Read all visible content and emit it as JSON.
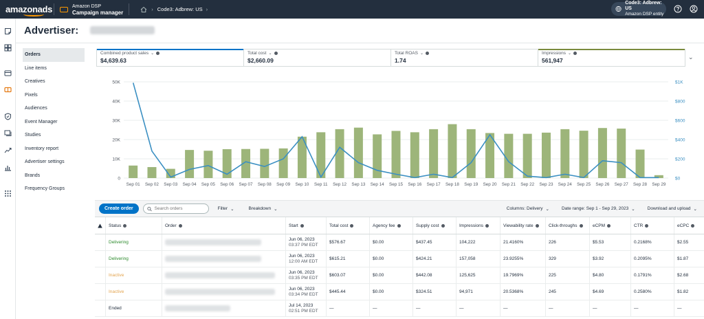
{
  "topbar": {
    "logo": "amazonads",
    "product_line1": "Amazon DSP",
    "product_line2": "Campaign manager",
    "breadcrumb": "Code3: Adbrew: US",
    "account_name": "Code3: Adbrew: US",
    "account_type": "Amazon DSP entity"
  },
  "page": {
    "title": "Advertiser:"
  },
  "nav": {
    "items": [
      "Orders",
      "Line items",
      "Creatives",
      "Pixels",
      "Audiences",
      "Event Manager",
      "Studies",
      "Inventory report",
      "Advertiser settings",
      "Brands",
      "Frequency Groups"
    ]
  },
  "metrics": [
    {
      "label": "Combined product sales",
      "value": "$4,639.63",
      "color": "#0073c7"
    },
    {
      "label": "Total cost",
      "value": "$2,660.09",
      "color": ""
    },
    {
      "label": "Total ROAS",
      "value": "1.74",
      "color": ""
    },
    {
      "label": "Impressions",
      "value": "561,947",
      "color": "#7a8b3e"
    }
  ],
  "toolbar": {
    "create_label": "Create order",
    "search_placeholder": "Search orders",
    "filter_label": "Filter",
    "breakdown_label": "Breakdown",
    "columns_label": "Columns: Delivery",
    "date_range_label": "Date range: Sep 1 - Sep 29, 2023",
    "download_label": "Download and upload"
  },
  "table": {
    "headers": [
      "Status",
      "Order",
      "Start",
      "Total cost",
      "Agency fee",
      "Supply cost",
      "Impressions",
      "Viewability rate",
      "Click-throughs",
      "eCPM",
      "CTR",
      "eCPC"
    ],
    "rows": [
      {
        "status": "Delivering",
        "status_color": "#2e8b2e",
        "start1": "Jun 06, 2023",
        "start2": "03:37 PM EDT",
        "total_cost": "$576.67",
        "agency_fee": "$0.00",
        "supply_cost": "$437.45",
        "impressions": "104,222",
        "viewability": "21.4160%",
        "clicks": "226",
        "ecpm": "$5.53",
        "ctr": "0.2168%",
        "ecpc": "$2.55"
      },
      {
        "status": "Delivering",
        "status_color": "#2e8b2e",
        "start1": "Jun 06, 2023",
        "start2": "12:00 AM EDT",
        "total_cost": "$615.21",
        "agency_fee": "$0.00",
        "supply_cost": "$424.21",
        "impressions": "157,058",
        "viewability": "23.9255%",
        "clicks": "329",
        "ecpm": "$3.92",
        "ctr": "0.2095%",
        "ecpc": "$1.87"
      },
      {
        "status": "Inactive",
        "status_color": "#e3a44f",
        "start1": "Jun 06, 2023",
        "start2": "03:35 PM EDT",
        "total_cost": "$603.07",
        "agency_fee": "$0.00",
        "supply_cost": "$442.08",
        "impressions": "125,625",
        "viewability": "19.7969%",
        "clicks": "225",
        "ecpm": "$4.80",
        "ctr": "0.1791%",
        "ecpc": "$2.68"
      },
      {
        "status": "Inactive",
        "status_color": "#e3a44f",
        "start1": "Jun 06, 2023",
        "start2": "03:34 PM EDT",
        "total_cost": "$445.44",
        "agency_fee": "$0.00",
        "supply_cost": "$324.51",
        "impressions": "94,971",
        "viewability": "20.5368%",
        "clicks": "245",
        "ecpm": "$4.69",
        "ctr": "0.2580%",
        "ecpc": "$1.82"
      },
      {
        "status": "Ended",
        "status_color": "#232f3e",
        "start1": "Jul 14, 2023",
        "start2": "02:51 PM EDT",
        "total_cost": "—",
        "agency_fee": "—",
        "supply_cost": "—",
        "impressions": "—",
        "viewability": "—",
        "clicks": "—",
        "ecpm": "—",
        "ctr": "—",
        "ecpc": "—"
      }
    ]
  },
  "chart_data": {
    "type": "bar",
    "categories": [
      "Sep 01",
      "Sep 02",
      "Sep 03",
      "Sep 04",
      "Sep 05",
      "Sep 06",
      "Sep 07",
      "Sep 08",
      "Sep 09",
      "Sep 10",
      "Sep 11",
      "Sep 12",
      "Sep 13",
      "Sep 14",
      "Sep 15",
      "Sep 16",
      "Sep 17",
      "Sep 18",
      "Sep 19",
      "Sep 20",
      "Sep 21",
      "Sep 22",
      "Sep 23",
      "Sep 24",
      "Sep 25",
      "Sep 26",
      "Sep 27",
      "Sep 28",
      "Sep 29"
    ],
    "y_left_ticks": [
      "0",
      "10K",
      "20K",
      "30K",
      "40K",
      "50K"
    ],
    "y_right_ticks": [
      "$0",
      "$200",
      "$400",
      "$600",
      "$800",
      "$1K"
    ],
    "ylim_left": [
      0,
      50000
    ],
    "ylim_right": [
      0,
      1000
    ],
    "series": [
      {
        "name": "Impressions",
        "type": "bar",
        "axis": "left",
        "color": "#9db57a",
        "values": [
          6500,
          5700,
          4800,
          14600,
          14200,
          15000,
          15100,
          15200,
          15400,
          21500,
          23800,
          25400,
          26200,
          22700,
          24500,
          23800,
          25400,
          28000,
          25400,
          23400,
          23000,
          23000,
          23600,
          25400,
          24600,
          26000,
          25700,
          14800,
          1500
        ]
      },
      {
        "name": "Combined product sales",
        "type": "line",
        "axis": "right",
        "color": "#3a8fc2",
        "values": [
          990,
          280,
          10,
          90,
          130,
          40,
          170,
          120,
          200,
          430,
          10,
          320,
          160,
          80,
          40,
          5,
          40,
          5,
          160,
          450,
          170,
          20,
          5,
          40,
          5,
          180,
          160,
          5,
          5
        ]
      }
    ]
  }
}
